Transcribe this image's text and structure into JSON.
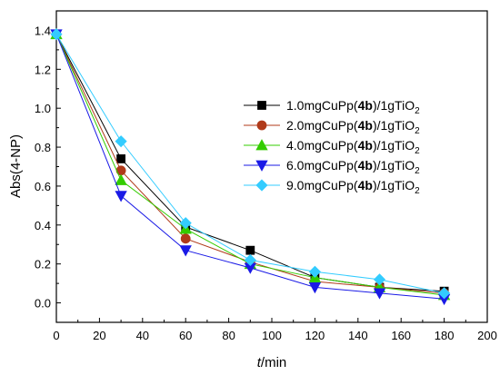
{
  "chart_data": {
    "type": "line",
    "xlabel_italic": "t",
    "xlabel_rest": "/min",
    "ylabel": "Abs(4-NP)",
    "xlim": [
      0,
      200
    ],
    "ylim": [
      -0.1,
      1.5
    ],
    "xticks": [
      0,
      20,
      40,
      60,
      80,
      100,
      120,
      140,
      160,
      180,
      200
    ],
    "yticks": [
      0.0,
      0.2,
      0.4,
      0.6,
      0.8,
      1.0,
      1.2,
      1.4
    ],
    "grid": false,
    "legend_position": "upper-right",
    "x": [
      0,
      30,
      60,
      90,
      120,
      150,
      180
    ],
    "series": [
      {
        "name": "1.0mgCuPp(4b)/1gTiO2",
        "label_parts": {
          "prefix": "1.0mgCuPp(",
          "bold": "4b",
          "middle": ")/1gTiO",
          "sub": "2"
        },
        "values": [
          1.38,
          0.74,
          0.39,
          0.27,
          0.13,
          0.08,
          0.06
        ],
        "color": "#000000",
        "marker": "square"
      },
      {
        "name": "2.0mgCuPp(4b)/1gTiO2",
        "label_parts": {
          "prefix": "2.0mgCuPp(",
          "bold": "4b",
          "middle": ")/1gTiO",
          "sub": "2"
        },
        "values": [
          1.38,
          0.68,
          0.33,
          0.21,
          0.11,
          0.08,
          0.05
        ],
        "color": "#b03a1a",
        "marker": "circle"
      },
      {
        "name": "4.0mgCuPp(4b)/1gTiO2",
        "label_parts": {
          "prefix": "4.0mgCuPp(",
          "bold": "4b",
          "middle": ")/1gTiO",
          "sub": "2"
        },
        "values": [
          1.38,
          0.63,
          0.38,
          0.2,
          0.13,
          0.08,
          0.04
        ],
        "color": "#33cc00",
        "marker": "triangle-up"
      },
      {
        "name": "6.0mgCuPp(4b)/1gTiO2",
        "label_parts": {
          "prefix": "6.0mgCuPp(",
          "bold": "4b",
          "middle": ")/1gTiO",
          "sub": "2"
        },
        "values": [
          1.38,
          0.55,
          0.27,
          0.18,
          0.08,
          0.05,
          0.02
        ],
        "color": "#1a1ae6",
        "marker": "triangle-down"
      },
      {
        "name": "9.0mgCuPp(4b)/1gTiO2",
        "label_parts": {
          "prefix": "9.0mgCuPp(",
          "bold": "4b",
          "middle": ")/1gTiO",
          "sub": "2"
        },
        "values": [
          1.38,
          0.83,
          0.41,
          0.22,
          0.16,
          0.12,
          0.05
        ],
        "color": "#33ccff",
        "marker": "diamond"
      }
    ]
  }
}
